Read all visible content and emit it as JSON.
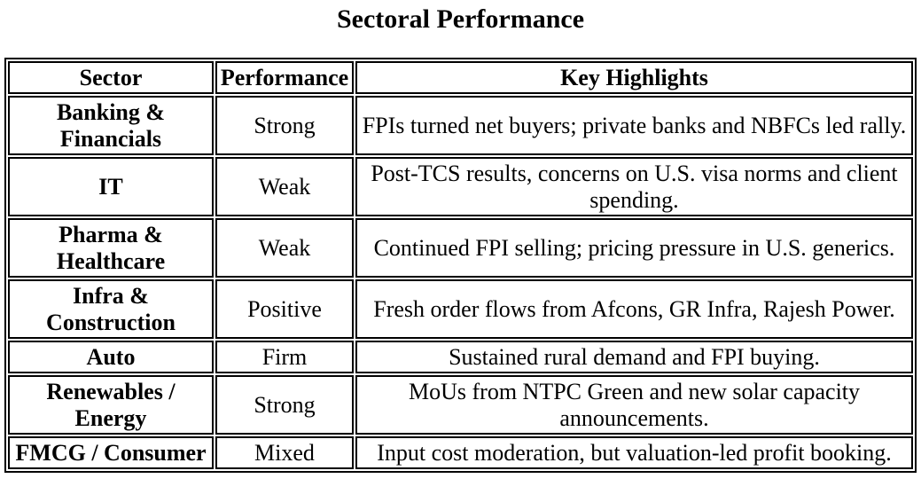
{
  "title": "Sectoral Performance",
  "table": {
    "columns": [
      "Sector",
      "Performance",
      "Key Highlights"
    ],
    "rows": [
      {
        "sector": "Banking & Financials",
        "performance": "Strong",
        "highlights": "FPIs turned net buyers; private banks and NBFCs led rally."
      },
      {
        "sector": "IT",
        "performance": "Weak",
        "highlights": "Post-TCS results, concerns on U.S. visa norms and client spending."
      },
      {
        "sector": "Pharma & Healthcare",
        "performance": "Weak",
        "highlights": "Continued FPI selling; pricing pressure in U.S. generics."
      },
      {
        "sector": "Infra & Construction",
        "performance": "Positive",
        "highlights": "Fresh order flows from Afcons, GR Infra, Rajesh Power."
      },
      {
        "sector": "Auto",
        "performance": "Firm",
        "highlights": "Sustained rural demand and FPI buying."
      },
      {
        "sector": "Renewables / Energy",
        "performance": "Strong",
        "highlights": "MoUs from NTPC Green and new solar capacity announcements."
      },
      {
        "sector": "FMCG / Consumer",
        "performance": "Mixed",
        "highlights": "Input cost moderation, but valuation-led profit booking."
      }
    ]
  }
}
